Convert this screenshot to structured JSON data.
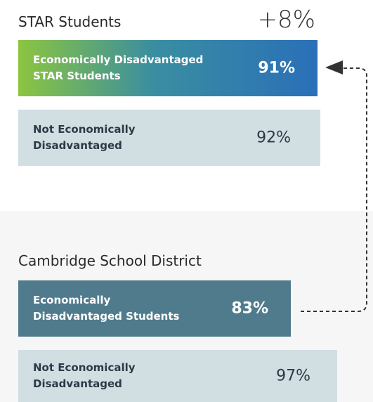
{
  "headline": "+8%",
  "sections": [
    {
      "title": "STAR Students",
      "bars": [
        {
          "label_lines": [
            "Economically Disadvantaged",
            "STAR Students"
          ],
          "value": "91%"
        },
        {
          "label_lines": [
            "Not Economically",
            "Disadvantaged"
          ],
          "value": "92%"
        }
      ]
    },
    {
      "title": "Cambridge School District",
      "bars": [
        {
          "label_lines": [
            "Economically",
            "Disadvantaged Students"
          ],
          "value": "83%"
        },
        {
          "label_lines": [
            "Not Economically",
            "Disadvantaged"
          ],
          "value": "97%"
        }
      ]
    }
  ]
}
